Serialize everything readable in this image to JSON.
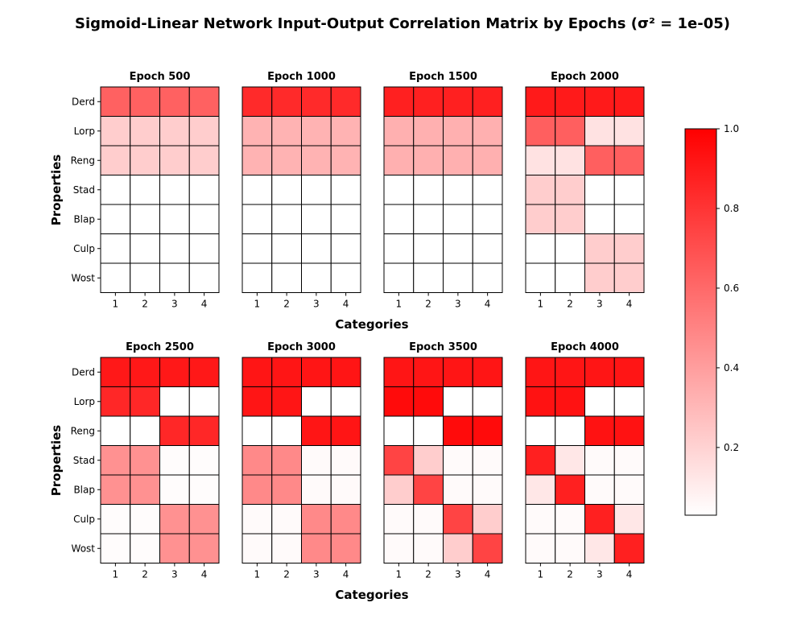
{
  "chart_data": {
    "type": "heatmap",
    "title": "Sigmoid-Linear Network Input-Output Correlation Matrix by Epochs (σ² = 1e-05)",
    "xlabel": "Categories",
    "ylabel": "Properties",
    "categories": [
      "1",
      "2",
      "3",
      "4"
    ],
    "properties": [
      "Derd",
      "Lorp",
      "Reng",
      "Stad",
      "Blap",
      "Culp",
      "Wost"
    ],
    "colorbar": {
      "range": [
        0.03,
        1.0
      ],
      "ticks": [
        "0.2",
        "0.4",
        "0.6",
        "0.8",
        "1.0"
      ],
      "tick_values": [
        0.2,
        0.4,
        0.6,
        0.8,
        1.0
      ],
      "colors": [
        "#ffffff",
        "#ff0000"
      ]
    },
    "panels": [
      {
        "title": "Epoch 500",
        "values": [
          [
            0.63,
            0.63,
            0.63,
            0.63
          ],
          [
            0.22,
            0.22,
            0.22,
            0.22
          ],
          [
            0.22,
            0.22,
            0.22,
            0.22
          ],
          [
            0.03,
            0.03,
            0.03,
            0.03
          ],
          [
            0.03,
            0.03,
            0.03,
            0.03
          ],
          [
            0.03,
            0.03,
            0.03,
            0.03
          ],
          [
            0.03,
            0.03,
            0.03,
            0.03
          ]
        ]
      },
      {
        "title": "Epoch 1000",
        "values": [
          [
            0.84,
            0.84,
            0.84,
            0.84
          ],
          [
            0.32,
            0.32,
            0.32,
            0.32
          ],
          [
            0.32,
            0.32,
            0.32,
            0.32
          ],
          [
            0.03,
            0.03,
            0.03,
            0.03
          ],
          [
            0.03,
            0.03,
            0.03,
            0.03
          ],
          [
            0.03,
            0.03,
            0.03,
            0.03
          ],
          [
            0.03,
            0.03,
            0.03,
            0.03
          ]
        ]
      },
      {
        "title": "Epoch 1500",
        "values": [
          [
            0.88,
            0.88,
            0.88,
            0.88
          ],
          [
            0.33,
            0.33,
            0.33,
            0.33
          ],
          [
            0.33,
            0.33,
            0.33,
            0.33
          ],
          [
            0.03,
            0.03,
            0.03,
            0.03
          ],
          [
            0.03,
            0.03,
            0.03,
            0.03
          ],
          [
            0.03,
            0.03,
            0.03,
            0.03
          ],
          [
            0.03,
            0.03,
            0.03,
            0.03
          ]
        ]
      },
      {
        "title": "Epoch 2000",
        "values": [
          [
            0.9,
            0.9,
            0.9,
            0.9
          ],
          [
            0.64,
            0.64,
            0.14,
            0.14
          ],
          [
            0.14,
            0.14,
            0.64,
            0.64
          ],
          [
            0.22,
            0.22,
            0.03,
            0.03
          ],
          [
            0.22,
            0.22,
            0.03,
            0.03
          ],
          [
            0.03,
            0.03,
            0.22,
            0.22
          ],
          [
            0.03,
            0.03,
            0.22,
            0.22
          ]
        ]
      },
      {
        "title": "Epoch 2500",
        "values": [
          [
            0.91,
            0.91,
            0.91,
            0.91
          ],
          [
            0.85,
            0.85,
            0.03,
            0.03
          ],
          [
            0.03,
            0.03,
            0.85,
            0.85
          ],
          [
            0.45,
            0.45,
            0.04,
            0.04
          ],
          [
            0.45,
            0.45,
            0.04,
            0.04
          ],
          [
            0.04,
            0.04,
            0.45,
            0.45
          ],
          [
            0.04,
            0.04,
            0.45,
            0.45
          ]
        ]
      },
      {
        "title": "Epoch 3000",
        "values": [
          [
            0.92,
            0.92,
            0.92,
            0.92
          ],
          [
            0.92,
            0.92,
            0.03,
            0.03
          ],
          [
            0.03,
            0.03,
            0.92,
            0.92
          ],
          [
            0.48,
            0.48,
            0.05,
            0.05
          ],
          [
            0.48,
            0.48,
            0.05,
            0.05
          ],
          [
            0.05,
            0.05,
            0.48,
            0.48
          ],
          [
            0.05,
            0.05,
            0.48,
            0.48
          ]
        ]
      },
      {
        "title": "Epoch 3500",
        "values": [
          [
            0.92,
            0.92,
            0.92,
            0.92
          ],
          [
            0.96,
            0.96,
            0.03,
            0.03
          ],
          [
            0.03,
            0.03,
            0.96,
            0.96
          ],
          [
            0.74,
            0.22,
            0.05,
            0.05
          ],
          [
            0.22,
            0.74,
            0.05,
            0.05
          ],
          [
            0.05,
            0.05,
            0.74,
            0.22
          ],
          [
            0.05,
            0.05,
            0.22,
            0.74
          ]
        ]
      },
      {
        "title": "Epoch 4000",
        "values": [
          [
            0.92,
            0.92,
            0.92,
            0.92
          ],
          [
            0.93,
            0.93,
            0.03,
            0.03
          ],
          [
            0.03,
            0.03,
            0.93,
            0.93
          ],
          [
            0.88,
            0.12,
            0.05,
            0.05
          ],
          [
            0.12,
            0.88,
            0.05,
            0.05
          ],
          [
            0.05,
            0.05,
            0.88,
            0.12
          ],
          [
            0.05,
            0.05,
            0.12,
            0.88
          ]
        ]
      }
    ]
  }
}
